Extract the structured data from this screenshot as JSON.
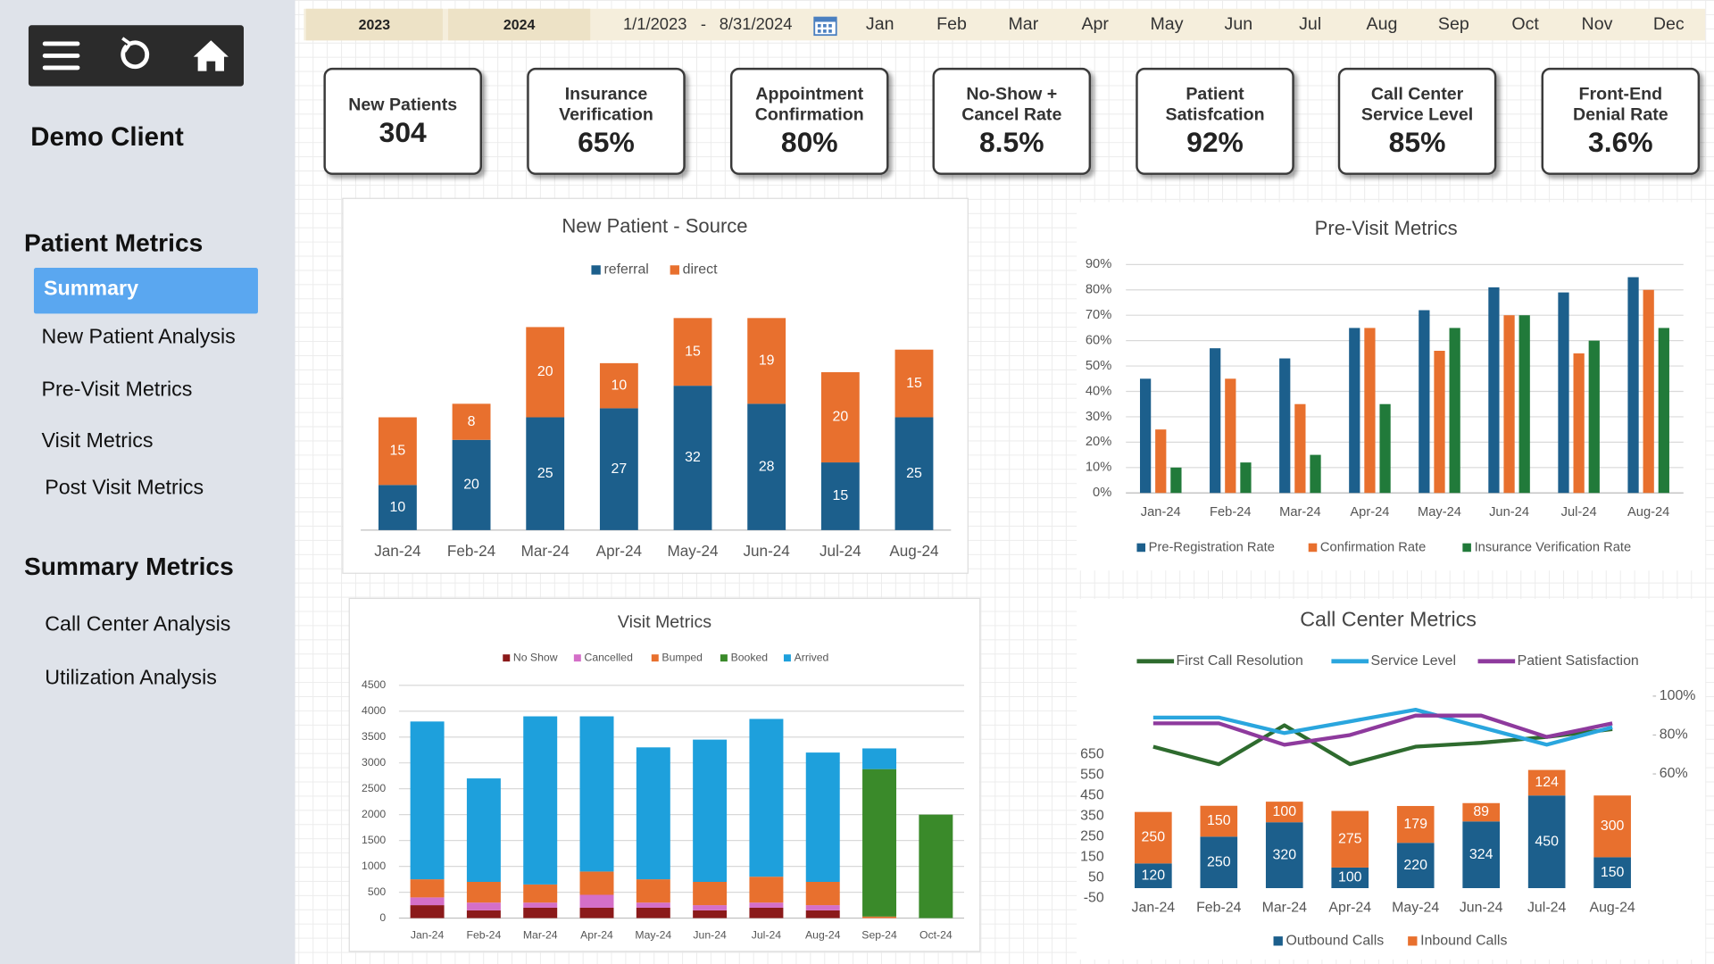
{
  "sidebar": {
    "title": "Demo Client",
    "sections": [
      {
        "heading": "Patient Metrics",
        "items": [
          "Summary",
          "New Patient Analysis",
          "Pre-Visit Metrics",
          "Visit Metrics",
          "Post Visit Metrics"
        ]
      },
      {
        "heading": "Summary Metrics",
        "items": [
          "Call Center Analysis",
          "Utilization Analysis"
        ]
      }
    ]
  },
  "filters": {
    "years": [
      "2023",
      "2024"
    ],
    "date_start": "1/1/2023",
    "date_separator": "-",
    "date_end": "8/31/2024",
    "months": [
      "Jan",
      "Feb",
      "Mar",
      "Apr",
      "May",
      "Jun",
      "Jul",
      "Aug",
      "Sep",
      "Oct",
      "Nov",
      "Dec"
    ]
  },
  "kpis": [
    {
      "label": "New Patients",
      "value": "304"
    },
    {
      "label": "Insurance Verification",
      "value": "65%"
    },
    {
      "label": "Appointment Confirmation",
      "value": "80%"
    },
    {
      "label": "No-Show + Cancel Rate",
      "value": "8.5%"
    },
    {
      "label": "Patient Satisfcation",
      "value": "92%"
    },
    {
      "label": "Call Center Service Level",
      "value": "85%"
    },
    {
      "label": "Front-End Denial Rate",
      "value": "3.6%"
    }
  ],
  "chart_data": [
    {
      "type": "bar",
      "title": "New Patient - Source",
      "stacked": true,
      "data_labels": true,
      "grid": false,
      "categories": [
        "Jan-24",
        "Feb-24",
        "Mar-24",
        "Apr-24",
        "May-24",
        "Jun-24",
        "Jul-24",
        "Aug-24"
      ],
      "series": [
        {
          "name": "referral",
          "color": "#1c5f8c",
          "values": [
            10,
            20,
            25,
            27,
            32,
            28,
            15,
            25
          ]
        },
        {
          "name": "direct",
          "color": "#e8702e",
          "values": [
            15,
            8,
            20,
            10,
            15,
            19,
            20,
            15
          ]
        }
      ]
    },
    {
      "type": "bar",
      "title": "Pre-Visit Metrics",
      "stacked": false,
      "data_labels": false,
      "grid": true,
      "categories": [
        "Jan-24",
        "Feb-24",
        "Mar-24",
        "Apr-24",
        "May-24",
        "Jun-24",
        "Jul-24",
        "Aug-24"
      ],
      "ylim": [
        0,
        90
      ],
      "yticks": [
        {
          "value": 0,
          "label": "0%"
        },
        {
          "value": 10,
          "label": "10%"
        },
        {
          "value": 20,
          "label": "20%"
        },
        {
          "value": 30,
          "label": "30%"
        },
        {
          "value": 40,
          "label": "40%"
        },
        {
          "value": 50,
          "label": "50%"
        },
        {
          "value": 60,
          "label": "60%"
        },
        {
          "value": 70,
          "label": "70%"
        },
        {
          "value": 80,
          "label": "80%"
        },
        {
          "value": 90,
          "label": "90%"
        }
      ],
      "series": [
        {
          "name": "Pre-Registration Rate",
          "color": "#1c5f8c",
          "values": [
            45,
            57,
            53,
            65,
            72,
            81,
            79,
            85
          ]
        },
        {
          "name": "Confirmation Rate",
          "color": "#e8702e",
          "values": [
            25,
            45,
            35,
            65,
            56,
            70,
            55,
            80
          ]
        },
        {
          "name": "Insurance Verification Rate",
          "color": "#217a3a",
          "values": [
            10,
            12,
            15,
            35,
            65,
            70,
            60,
            65
          ]
        }
      ]
    },
    {
      "type": "bar",
      "title": "Visit Metrics",
      "stacked": true,
      "data_labels": false,
      "grid": true,
      "categories": [
        "Jan-24",
        "Feb-24",
        "Mar-24",
        "Apr-24",
        "May-24",
        "Jun-24",
        "Jul-24",
        "Aug-24",
        "Sep-24",
        "Oct-24"
      ],
      "ylim": [
        0,
        4500
      ],
      "yticks": [
        0,
        500,
        1000,
        1500,
        2000,
        2500,
        3000,
        3500,
        4000,
        4500
      ],
      "series": [
        {
          "name": "No Show",
          "color": "#8b1a1a",
          "values": [
            250,
            150,
            200,
            200,
            200,
            150,
            200,
            150,
            0,
            0
          ]
        },
        {
          "name": "Cancelled",
          "color": "#d46fc8",
          "values": [
            150,
            150,
            100,
            250,
            100,
            100,
            100,
            100,
            0,
            0
          ]
        },
        {
          "name": "Bumped",
          "color": "#e8702e",
          "values": [
            350,
            400,
            350,
            450,
            450,
            450,
            500,
            450,
            30,
            0
          ]
        },
        {
          "name": "Booked",
          "color": "#3a8a2a",
          "values": [
            0,
            0,
            0,
            0,
            0,
            0,
            0,
            0,
            2850,
            2000
          ]
        },
        {
          "name": "Arrived",
          "color": "#1ea0dc",
          "values": [
            3050,
            2000,
            3250,
            3000,
            2550,
            2750,
            3050,
            2500,
            400,
            0
          ]
        }
      ]
    },
    {
      "type": "combo",
      "title": "Call Center Metrics",
      "stacked": true,
      "data_labels": true,
      "grid": false,
      "categories": [
        "Jan-24",
        "Feb-24",
        "Mar-24",
        "Apr-24",
        "May-24",
        "Jun-24",
        "Jul-24",
        "Aug-24"
      ],
      "ylim": [
        -50,
        980
      ],
      "yticks": [
        -50,
        50,
        150,
        250,
        350,
        450,
        550,
        650
      ],
      "y2lim": [
        -4,
        105
      ],
      "y2ticks": [
        {
          "value": 60,
          "label": "60%"
        },
        {
          "value": 80,
          "label": "80%"
        },
        {
          "value": 100,
          "label": "100%"
        }
      ],
      "series": [
        {
          "name": "Outbound Calls",
          "type": "bar",
          "color": "#1c5f8c",
          "values": [
            120,
            250,
            320,
            100,
            220,
            324,
            450,
            150
          ]
        },
        {
          "name": "Inbound Calls",
          "type": "bar",
          "color": "#e8702e",
          "values": [
            250,
            150,
            100,
            275,
            179,
            89,
            124,
            300
          ]
        },
        {
          "name": "First Call Resolution",
          "type": "line",
          "axis": "y2",
          "color": "#2e6b2e",
          "values": [
            74,
            65,
            85,
            65,
            74,
            76,
            79,
            83
          ]
        },
        {
          "name": "Service Level",
          "type": "line",
          "axis": "y2",
          "color": "#2aa6de",
          "values": [
            89,
            89,
            81,
            87,
            93,
            84,
            75,
            84
          ]
        },
        {
          "name": "Patient Satisfaction",
          "type": "line",
          "axis": "y2",
          "color": "#8e3a9d",
          "values": [
            86,
            86,
            75,
            80,
            90,
            90,
            79,
            86
          ]
        }
      ]
    }
  ]
}
